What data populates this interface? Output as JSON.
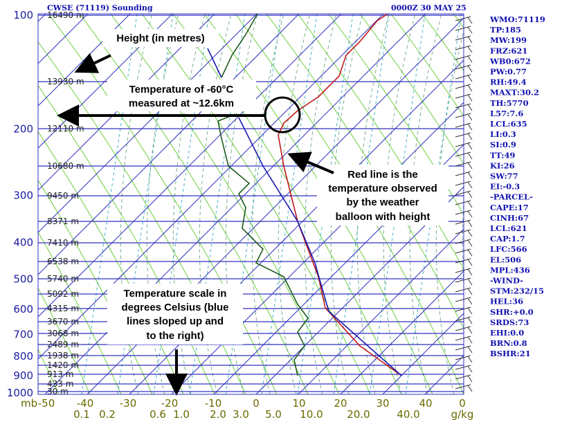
{
  "header": {
    "title": "CWSE (71119) Sounding",
    "time": "0000Z 30 MAY 25"
  },
  "pressure_labels": [
    "100",
    "200",
    "300",
    "400",
    "500",
    "600",
    "700",
    "800",
    "900",
    "1000"
  ],
  "pressure_unit": "mb",
  "height_labels": [
    "16490 m",
    "13930 m",
    "12110 m",
    "10680 m",
    "9450 m",
    "8371 m",
    "7410 m",
    "6538 m",
    "5740 m",
    "5092 m",
    "4315 m",
    "3670 m",
    "3068 m",
    "2489 m",
    "1938 m",
    "1420 m",
    "913 m",
    "433 m",
    "30 m"
  ],
  "temperature_labels": [
    "-50",
    "-40",
    "-30",
    "-20",
    "-10",
    "0",
    "10",
    "20",
    "30",
    "40",
    "0"
  ],
  "mixing_ratio_labels": [
    "0.1",
    "0.2",
    "0.6",
    "1.0",
    "2.0",
    "3.0",
    "5.0",
    "10.0",
    "20.0",
    "40.0"
  ],
  "mixing_ratio_unit": "g/kg",
  "stats": [
    "WMO:71119",
    "TP:185",
    "MW:199",
    "FRZ:621",
    "WB0:672",
    "PW:0.77",
    "RH:49.4",
    "MAXT:30.2",
    "TH:5770",
    "L57:7.6",
    "LCL:635",
    "LI:0.3",
    "SI:0.9",
    "TT:49",
    "KI:26",
    "SW:77",
    "EI:-0.3",
    "-PARCEL-",
    "CAPE:17",
    "CINH:67",
    "LCL:621",
    "CAP:1.7",
    "LFC:566",
    "EL:506",
    "MPL:436",
    "-WIND-",
    "STM:232/15",
    "HEL:36",
    "SHR:+0.0",
    "SRDS:73",
    "EHI:0.0",
    "BRN:0.8",
    "BSHR:21"
  ],
  "annotations": {
    "height": "Height (in metres)",
    "temperature": [
      "Temperature of -60°C",
      "measured at ~12.6km"
    ],
    "red_line": [
      "Red line is the",
      "temperature observed",
      "by the weather",
      "balloon with height"
    ],
    "scale": [
      "Temperature scale in",
      "degrees Celsius (blue",
      "lines sloped up and",
      "to the right)"
    ]
  }
}
